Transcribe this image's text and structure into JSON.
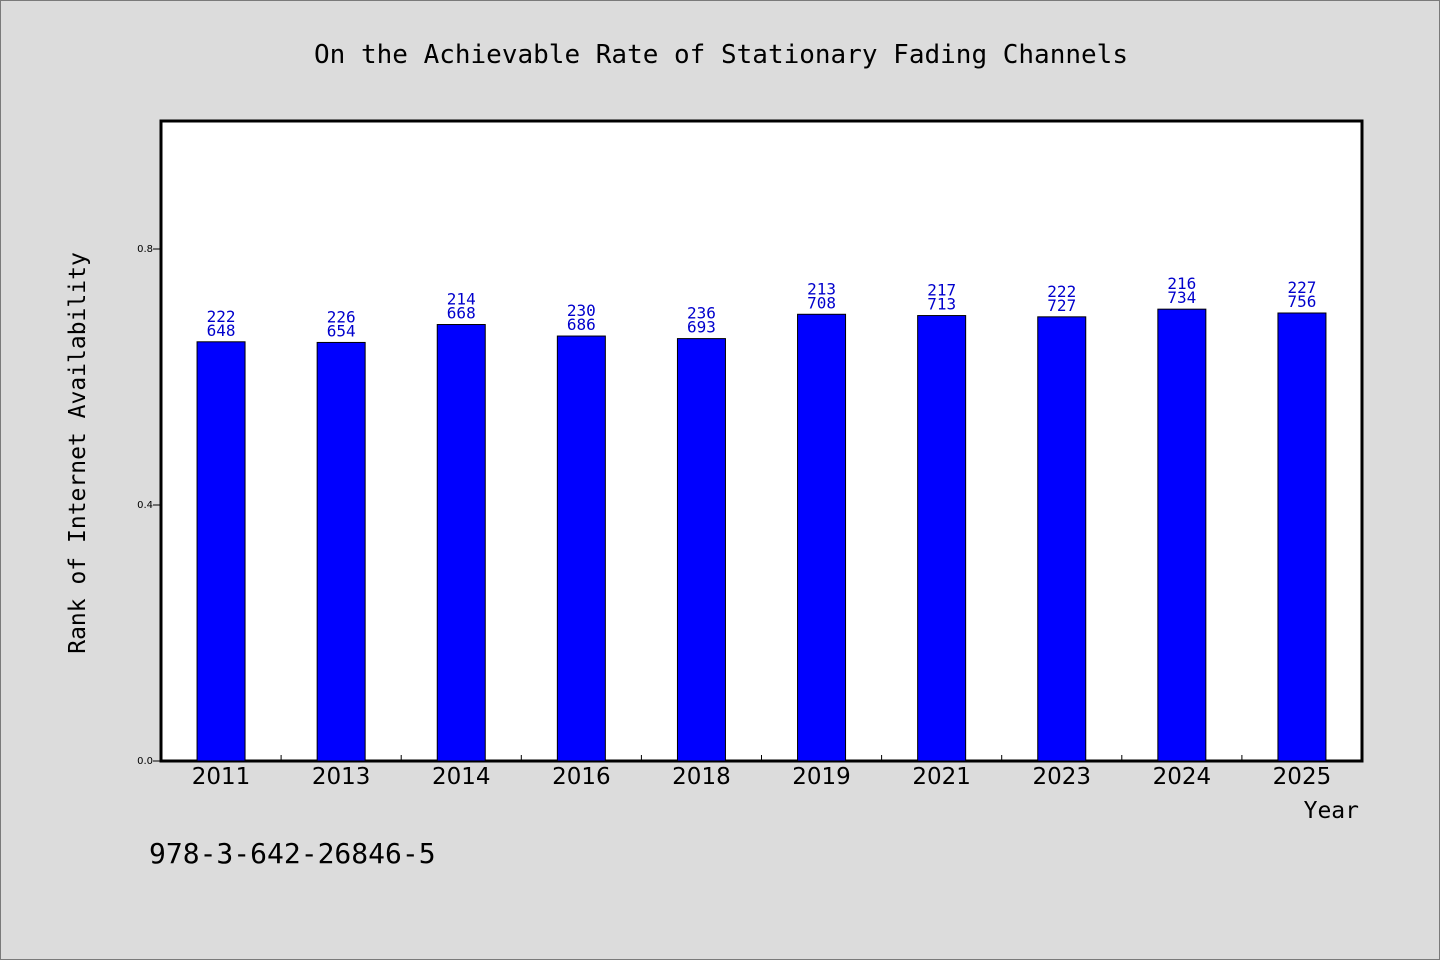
{
  "chart_data": {
    "type": "bar",
    "title": "On the Achievable Rate of Stationary Fading Channels",
    "xlabel": "Year",
    "ylabel": "Rank of Internet Availability",
    "ylim": [
      0,
      1.0
    ],
    "yticks": [
      "0.0",
      "0.4",
      "0.8"
    ],
    "ytick_values": [
      0.0,
      0.4,
      0.8
    ],
    "categories": [
      "2011",
      "2013",
      "2014",
      "2016",
      "2018",
      "2019",
      "2021",
      "2023",
      "2024",
      "2025"
    ],
    "values": [
      0.655,
      0.654,
      0.682,
      0.664,
      0.66,
      0.698,
      0.696,
      0.694,
      0.706,
      0.7
    ],
    "label_top": [
      "222",
      "226",
      "214",
      "230",
      "236",
      "213",
      "217",
      "222",
      "216",
      "227"
    ],
    "label_bottom": [
      "648",
      "654",
      "668",
      "686",
      "693",
      "708",
      "713",
      "727",
      "734",
      "756"
    ],
    "bar_color": "#0000ff",
    "label_color": "#0000cc",
    "grid": false
  },
  "footer": {
    "isbn": "978-3-642-26846-5"
  },
  "colors": {
    "page_background": "#dcdcdc",
    "plot_background": "#ffffff"
  }
}
